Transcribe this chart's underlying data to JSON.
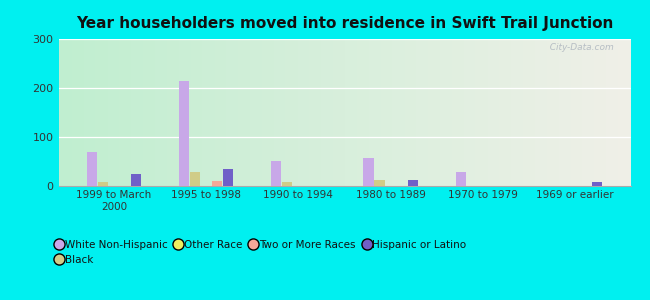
{
  "title": "Year householders moved into residence in Swift Trail Junction",
  "categories": [
    "1999 to March\n2000",
    "1995 to 1998",
    "1990 to 1994",
    "1980 to 1989",
    "1970 to 1979",
    "1969 or earlier"
  ],
  "series": {
    "White Non-Hispanic": [
      70,
      215,
      52,
      57,
      28,
      0
    ],
    "Black": [
      8,
      28,
      8,
      13,
      0,
      0
    ],
    "Other Race": [
      0,
      0,
      0,
      0,
      0,
      0
    ],
    "Two or More Races": [
      0,
      10,
      0,
      0,
      0,
      0
    ],
    "Hispanic or Latino": [
      25,
      35,
      0,
      13,
      0,
      8
    ]
  },
  "colors": {
    "White Non-Hispanic": "#c8a8e8",
    "Black": "#d0cc88",
    "Other Race": "#eeee60",
    "Two or More Races": "#f5a898",
    "Hispanic or Latino": "#7060c8"
  },
  "ylim": [
    0,
    300
  ],
  "yticks": [
    0,
    100,
    200,
    300
  ],
  "outer_bg": "#00f0f0",
  "plot_bg_left": "#c0eed0",
  "plot_bg_right": "#f0f0e8",
  "grid_color": "#ffffff",
  "watermark": "  City-Data.com"
}
